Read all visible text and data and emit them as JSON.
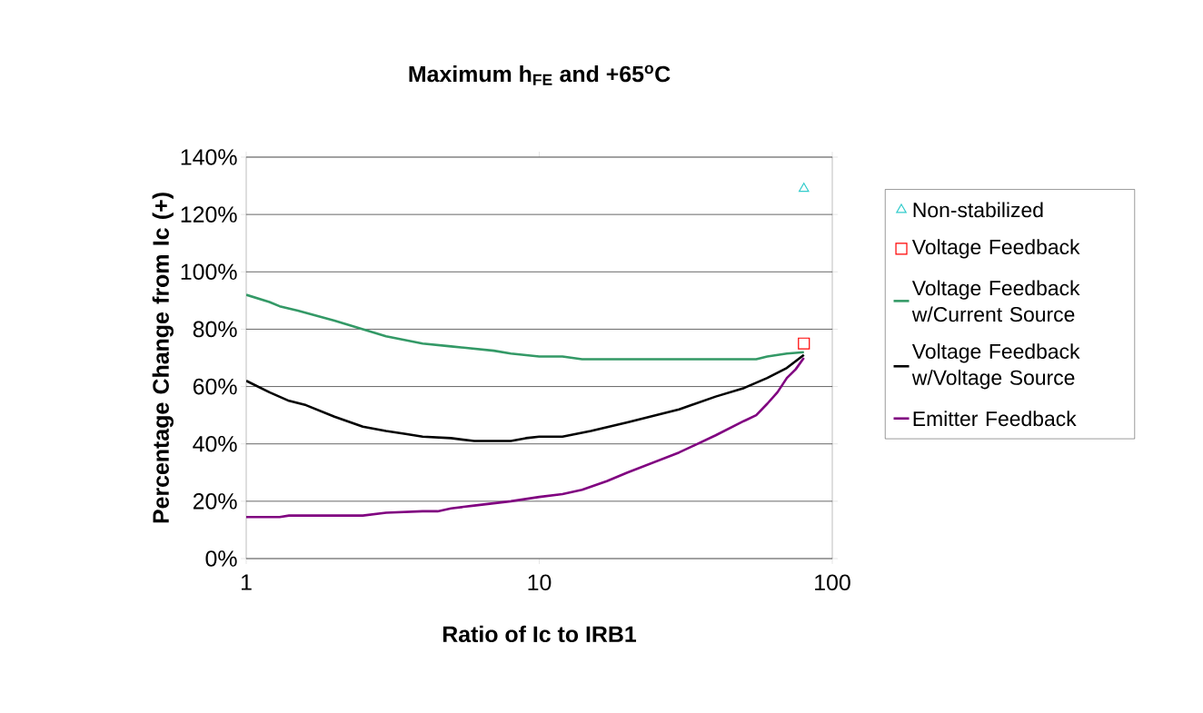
{
  "chart_data": {
    "type": "line",
    "title": "Maximum h$_{FE}$ and +65$^{o}$C",
    "xlabel": "Ratio of Ic to IRB1",
    "ylabel": "Percentage Change from Ic (+)",
    "log": "x",
    "grid": "y",
    "legend": "right",
    "xlim": [
      1,
      100
    ],
    "xticks": [
      1,
      10,
      100
    ],
    "ylim": [
      0,
      140
    ],
    "yticks": [
      {
        "value": 0,
        "label": "0%"
      },
      {
        "value": 20,
        "label": "20%"
      },
      {
        "value": 40,
        "label": "40%"
      },
      {
        "value": 60,
        "label": "60%"
      },
      {
        "value": 80,
        "label": "80%"
      },
      {
        "value": 100,
        "label": "100%"
      },
      {
        "value": 120,
        "label": "120%"
      },
      {
        "value": 140,
        "label": "140%"
      }
    ],
    "series": [
      {
        "name": "Non-stabilized",
        "type": "scatter",
        "marker": "triangle",
        "color": "#33cccc",
        "x": [
          80
        ],
        "values": [
          129
        ]
      },
      {
        "name": "Voltage Feedback",
        "type": "scatter",
        "marker": "square",
        "color": "#ff0000",
        "x": [
          80
        ],
        "values": [
          75
        ]
      },
      {
        "name": "Voltage Feedback w/Current Source",
        "color": "#339966",
        "x": [
          1,
          1.2,
          1.3,
          1.5,
          2,
          2.5,
          3,
          4,
          5,
          7,
          8,
          10,
          12,
          14,
          20,
          30,
          50,
          55,
          60,
          70,
          80
        ],
        "values": [
          92,
          89.5,
          88,
          86.5,
          83,
          80,
          77.5,
          75,
          74,
          72.5,
          71.5,
          70.5,
          70.5,
          69.5,
          69.5,
          69.5,
          69.5,
          69.5,
          70.5,
          71.5,
          72
        ]
      },
      {
        "name": "Voltage Feedback w/Voltage Source",
        "color": "#000000",
        "x": [
          1,
          1.2,
          1.4,
          1.6,
          2,
          2.5,
          3,
          3.5,
          4,
          5,
          6,
          8,
          9,
          10,
          12,
          15,
          20,
          30,
          40,
          50,
          60,
          70,
          80
        ],
        "values": [
          62,
          58,
          55,
          53.5,
          49.5,
          46,
          44.5,
          43.5,
          42.5,
          42,
          41,
          41,
          42,
          42.5,
          42.5,
          44.5,
          47.5,
          52,
          56.5,
          59.5,
          63,
          66.5,
          71
        ]
      },
      {
        "name": "Emitter Feedback",
        "color": "#800080",
        "x": [
          1,
          1.3,
          1.4,
          2,
          2.5,
          3,
          4,
          4.5,
          5,
          6,
          8,
          10,
          12,
          14,
          17,
          20,
          30,
          40,
          50,
          55,
          60,
          65,
          70,
          75,
          80
        ],
        "values": [
          14.5,
          14.5,
          15,
          15,
          15,
          16,
          16.5,
          16.5,
          17.5,
          18.5,
          20,
          21.5,
          22.5,
          24,
          27,
          30,
          37,
          43,
          48,
          50,
          54,
          58,
          63,
          66,
          70
        ]
      }
    ]
  }
}
